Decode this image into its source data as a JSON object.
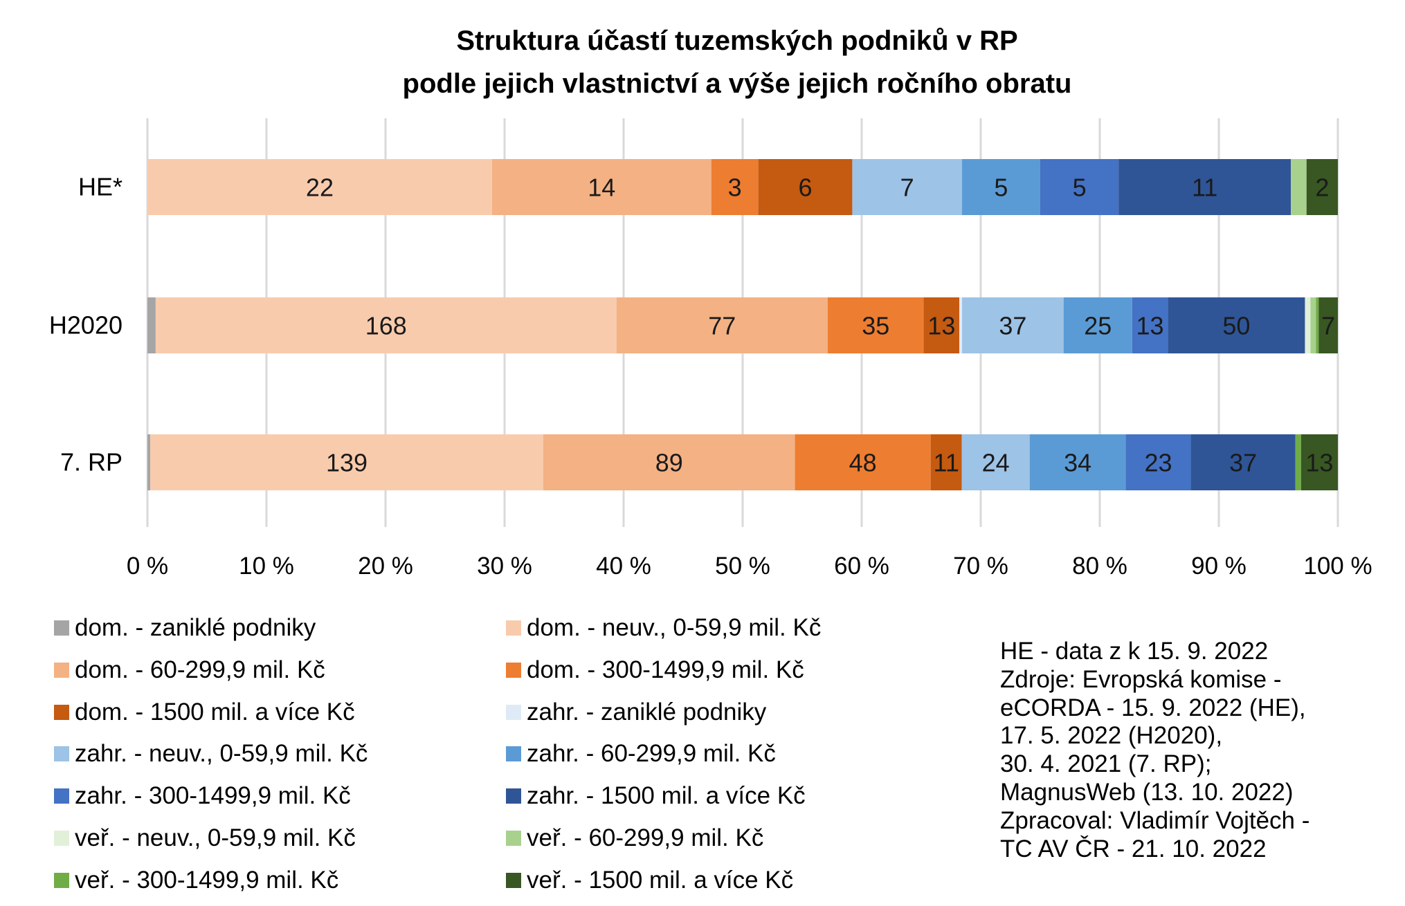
{
  "chart_data": {
    "type": "bar",
    "orientation": "horizontal",
    "stacked": "percent",
    "title": [
      "Struktura účastí tuzemských podniků v RP",
      "podle jejich vlastnictví a výše jejich ročního obratu"
    ],
    "categories": [
      "HE*",
      "H2020",
      "7. RP"
    ],
    "xlim": [
      0,
      100
    ],
    "x_ticks": [
      "0 %",
      "10 %",
      "20 %",
      "30 %",
      "40 %",
      "50 %",
      "60 %",
      "70 %",
      "80 %",
      "90 %",
      "100 %"
    ],
    "grid": true,
    "legend_position": "bottom",
    "series": [
      {
        "name": "dom. - zaniklé podniky",
        "color": "#a5a5a5",
        "values": [
          0,
          3,
          1
        ],
        "labels": [
          "",
          "",
          ""
        ]
      },
      {
        "name": "dom. - neuv., 0-59,9 mil. Kč",
        "color": "#f8cbad",
        "values": [
          22,
          168,
          139
        ],
        "labels": [
          "22",
          "168",
          "139"
        ]
      },
      {
        "name": "dom. - 60-299,9 mil. Kč",
        "color": "#f4b183",
        "values": [
          14,
          77,
          89
        ],
        "labels": [
          "14",
          "77",
          "89"
        ]
      },
      {
        "name": "dom. - 300-1499,9 mil. Kč",
        "color": "#ed7d31",
        "values": [
          3,
          35,
          48
        ],
        "labels": [
          "3",
          "35",
          "48"
        ]
      },
      {
        "name": "dom. - 1500 mil. a více Kč",
        "color": "#c55a11",
        "values": [
          6,
          13,
          11
        ],
        "labels": [
          "6",
          "13",
          "11"
        ]
      },
      {
        "name": "zahr. - zaniklé podniky",
        "color": "#deebf7",
        "values": [
          0,
          1,
          0
        ],
        "labels": [
          "",
          "",
          ""
        ]
      },
      {
        "name": "zahr. - neuv., 0-59,9 mil. Kč",
        "color": "#9dc3e6",
        "values": [
          7,
          37,
          24
        ],
        "labels": [
          "7",
          "37",
          "24"
        ]
      },
      {
        "name": "zahr. - 60-299,9 mil. Kč",
        "color": "#5b9bd5",
        "values": [
          5,
          25,
          34
        ],
        "labels": [
          "5",
          "25",
          "34"
        ]
      },
      {
        "name": "zahr. - 300-1499,9 mil. Kč",
        "color": "#4472c4",
        "values": [
          5,
          13,
          23
        ],
        "labels": [
          "5",
          "13",
          "23"
        ]
      },
      {
        "name": "zahr. - 1500 mil. a více Kč",
        "color": "#2f5597",
        "values": [
          11,
          50,
          37
        ],
        "labels": [
          "11",
          "50",
          "37"
        ]
      },
      {
        "name": "veř. - neuv., 0-59,9 mil. Kč",
        "color": "#e2f0d9",
        "values": [
          0,
          2,
          0
        ],
        "labels": [
          "",
          "",
          ""
        ]
      },
      {
        "name": "veř. - 60-299,9 mil. Kč",
        "color": "#a9d18e",
        "values": [
          1,
          2,
          0
        ],
        "labels": [
          "",
          "",
          ""
        ]
      },
      {
        "name": "veř. - 300-1499,9 mil. Kč",
        "color": "#70ad47",
        "values": [
          0,
          1,
          2
        ],
        "labels": [
          "",
          "",
          ""
        ]
      },
      {
        "name": "veř. - 1500 mil. a více Kč",
        "color": "#385723",
        "values": [
          2,
          7,
          13
        ],
        "labels": [
          "2",
          "7",
          "13"
        ]
      }
    ]
  },
  "notes": [
    "HE - data z k 15. 9. 2022",
    "Zdroje: Evropská komise -",
    "eCORDA - 15. 9. 2022 (HE),",
    "17. 5. 2022 (H2020),",
    "30. 4. 2021 (7. RP);",
    "MagnusWeb (13. 10. 2022)",
    "Zpracoval: Vladimír Vojtěch -",
    "TC AV ČR - 21. 10. 2022"
  ]
}
